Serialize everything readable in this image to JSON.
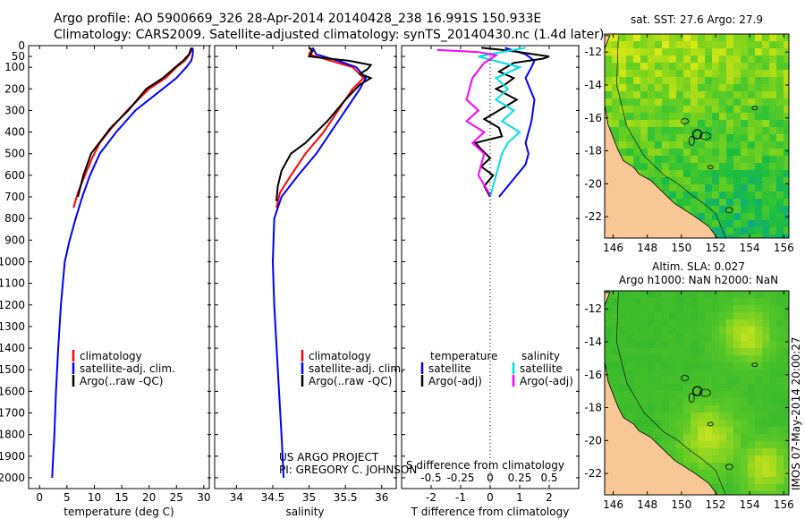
{
  "header": {
    "line1": "Argo profile: AO 5900669_326 28-Apr-2014 20140428_238 16.991S 150.933E",
    "line2": "Climatology: CARS2009. Satellite-adjusted climatology: synTS_20140430.nc (1.4d later)"
  },
  "credits": {
    "project": "US ARGO PROJECT",
    "pi": "PI: GREGORY C. JOHNSON",
    "imos": "IMOS 07-May-2014 20:00:27"
  },
  "colors": {
    "climatology": "#ff0000",
    "satellite": "#0000ff",
    "argo": "#000000",
    "satellite_sal": "#00e0e0",
    "argo_sal": "#ff00ff",
    "land": "#f7c795",
    "coast": "#000000"
  },
  "chart_data": [
    {
      "type": "line",
      "id": "temperature",
      "xlabel": "temperature (deg C)",
      "ylabel": "",
      "xlim": [
        -2,
        31
      ],
      "ylim": [
        2050,
        0
      ],
      "xticks": [
        0,
        5,
        10,
        15,
        20,
        25,
        30
      ],
      "yticks": [
        0,
        50,
        100,
        200,
        300,
        400,
        500,
        600,
        700,
        800,
        900,
        1000,
        1100,
        1200,
        1300,
        1400,
        1500,
        1600,
        1700,
        1800,
        1900,
        2000
      ],
      "legend": [
        "climatology",
        "satellite-adj. clim.",
        "Argo(..raw -QC)"
      ],
      "series": [
        {
          "name": "climatology",
          "color": "#ff0000",
          "x": [
            27.9,
            27.4,
            26.5,
            25.0,
            23.0,
            20.0,
            16.0,
            13.2,
            11.0,
            9.6,
            8.3,
            7.0,
            6.2
          ],
          "y": [
            10,
            40,
            70,
            100,
            150,
            200,
            300,
            380,
            450,
            520,
            600,
            680,
            750
          ]
        },
        {
          "name": "satellite-adj. clim.",
          "color": "#0000ff",
          "x": [
            28.0,
            28.0,
            27.7,
            26.8,
            25.0,
            22.5,
            17.5,
            14.0,
            11.0,
            9.2,
            7.8,
            6.6,
            5.5,
            4.6,
            3.9,
            3.4,
            3.0,
            2.7,
            2.5,
            2.3
          ],
          "y": [
            10,
            40,
            70,
            100,
            150,
            200,
            300,
            400,
            500,
            600,
            700,
            800,
            900,
            1000,
            1200,
            1400,
            1600,
            1800,
            1900,
            2000
          ]
        },
        {
          "name": "Argo(..raw -QC)",
          "color": "#000000",
          "x": [
            27.7,
            27.3,
            26.2,
            24.8,
            22.5,
            19.5,
            16.2,
            13.0,
            11.2,
            9.4,
            8.0,
            7.0
          ],
          "y": [
            10,
            40,
            70,
            100,
            150,
            200,
            300,
            380,
            440,
            500,
            600,
            700
          ]
        }
      ]
    },
    {
      "type": "line",
      "id": "salinity",
      "xlabel": "salinity",
      "ylabel": "",
      "xlim": [
        33.7,
        36.2
      ],
      "ylim": [
        2050,
        0
      ],
      "xticks": [
        34,
        34.5,
        35,
        35.5,
        36
      ],
      "legend": [
        "climatology",
        "satellite-adj. clim.",
        "Argo(..raw -QC)"
      ],
      "series": [
        {
          "name": "climatology",
          "color": "#ff0000",
          "x": [
            35.05,
            35.0,
            35.3,
            35.6,
            35.75,
            35.6,
            35.4,
            35.2,
            34.95,
            34.75,
            34.6,
            34.55
          ],
          "y": [
            10,
            40,
            70,
            100,
            150,
            200,
            300,
            400,
            500,
            600,
            680,
            750
          ]
        },
        {
          "name": "satellite-adj. clim.",
          "color": "#0000ff",
          "x": [
            35.05,
            35.1,
            35.4,
            35.65,
            35.78,
            35.7,
            35.5,
            35.3,
            35.1,
            34.85,
            34.62,
            34.52,
            34.5,
            34.52,
            34.57,
            34.62,
            34.65
          ],
          "y": [
            10,
            40,
            70,
            100,
            150,
            200,
            300,
            400,
            500,
            600,
            700,
            800,
            1000,
            1200,
            1500,
            1800,
            2000
          ]
        },
        {
          "name": "Argo(..raw -QC)",
          "color": "#000000",
          "x": [
            35.0,
            35.05,
            35.0,
            35.55,
            35.85,
            35.8,
            35.7,
            35.85,
            35.7,
            35.5,
            35.25,
            34.95,
            34.75,
            34.62,
            34.57,
            34.55
          ],
          "y": [
            10,
            25,
            50,
            70,
            90,
            110,
            130,
            150,
            180,
            250,
            350,
            450,
            500,
            580,
            650,
            720
          ]
        }
      ]
    },
    {
      "type": "line",
      "id": "differences",
      "xlabel_top": "S difference from climatology",
      "xlabel": "T difference from climatology",
      "xlim_T": [
        -3,
        3
      ],
      "xticks_T": [
        -2,
        -1,
        0,
        1,
        2
      ],
      "xticks_S": [
        -0.5,
        -0.25,
        0,
        0.25,
        0.5
      ],
      "ylim": [
        2050,
        0
      ],
      "legend_temperature": {
        "title": "temperature",
        "items": [
          "satellite",
          "Argo(-adj)"
        ]
      },
      "legend_salinity": {
        "title": "salinity",
        "items": [
          "satellite",
          "Argo(-adj)"
        ]
      },
      "series": [
        {
          "name": "T satellite",
          "color": "#0000ff",
          "x": [
            0.5,
            1.2,
            1.5,
            1.4,
            1.2,
            1.5,
            1.4,
            1.3,
            1.2,
            1.3,
            1.2,
            0.9,
            0.6,
            0.3
          ],
          "y": [
            10,
            40,
            70,
            100,
            150,
            250,
            350,
            400,
            450,
            500,
            550,
            600,
            650,
            700
          ]
        },
        {
          "name": "T Argo(-adj)",
          "color": "#000000",
          "x": [
            -0.3,
            0.4,
            1.0,
            1.5,
            2.0,
            1.8,
            0.8,
            0.3,
            0.8,
            0.5,
            0.2,
            0.9,
            0.3,
            -0.2,
            0.3,
            0.4,
            -0.5,
            -0.3,
            0.0,
            -0.3,
            0.1,
            -0.2,
            0.0
          ],
          "y": [
            10,
            20,
            30,
            40,
            50,
            60,
            80,
            120,
            150,
            180,
            200,
            250,
            300,
            340,
            380,
            420,
            450,
            480,
            520,
            560,
            600,
            650,
            700
          ]
        },
        {
          "name": "S satellite",
          "color": "#00e0e0",
          "x": [
            0.3,
            -0.1,
            0.25,
            0.05,
            0.15,
            0.05,
            0.2,
            0.1,
            0.25,
            0.15,
            0.1,
            0.05,
            0.0
          ],
          "y": [
            10,
            50,
            100,
            150,
            200,
            250,
            300,
            350,
            400,
            450,
            500,
            600,
            700
          ]
        },
        {
          "name": "S Argo(-adj)",
          "color": "#ff00ff",
          "x": [
            -0.45,
            -0.1,
            0.05,
            -0.05,
            -0.15,
            -0.2,
            -0.1,
            -0.2,
            -0.05,
            -0.15,
            -0.05,
            -0.1,
            0.0
          ],
          "y": [
            20,
            30,
            45,
            80,
            150,
            250,
            300,
            350,
            400,
            450,
            500,
            600,
            690
          ]
        }
      ]
    },
    {
      "type": "heatmap",
      "id": "sst-map",
      "title": "sat. SST: 27.6 Argo: 27.9",
      "xticks": [
        146,
        148,
        150,
        152,
        154,
        156
      ],
      "yticks": [
        -12,
        -14,
        -16,
        -18,
        -20,
        -22
      ],
      "xlim": [
        145.5,
        156.3
      ],
      "ylim": [
        -23.3,
        -10.9
      ],
      "float_position": [
        150.933,
        -16.991
      ]
    },
    {
      "type": "heatmap",
      "id": "sla-map",
      "title_line1": "Altim. SLA: 0.027",
      "title_line2": "Argo h1000: NaN h2000: NaN",
      "xticks": [
        146,
        148,
        150,
        152,
        154,
        156
      ],
      "yticks": [
        -12,
        -14,
        -16,
        -18,
        -20,
        -22
      ],
      "xlim": [
        145.5,
        156.3
      ],
      "ylim": [
        -23.3,
        -10.9
      ],
      "float_position": [
        150.933,
        -16.991
      ]
    }
  ]
}
